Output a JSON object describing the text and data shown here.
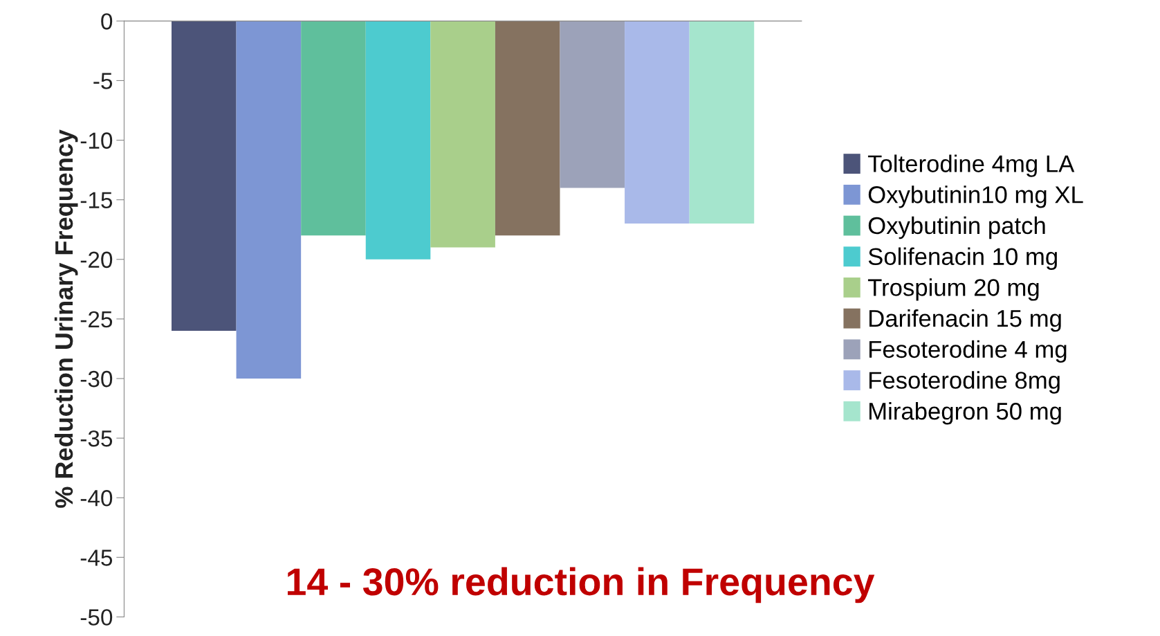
{
  "chart_data": {
    "type": "bar",
    "ylabel": "% Reduction Urinary Frequency",
    "categories": [
      null
    ],
    "series": [
      {
        "name": "Tolterodine 4mg LA",
        "color": "#4c5479",
        "values": [
          -26
        ]
      },
      {
        "name": "Oxybutinin10 mg XL",
        "color": "#7d96d4",
        "values": [
          -30
        ]
      },
      {
        "name": "Oxybutinin patch",
        "color": "#5fbf9c",
        "values": [
          -18
        ]
      },
      {
        "name": "Solifenacin 10 mg",
        "color": "#4dcbcf",
        "values": [
          -20
        ]
      },
      {
        "name": "Trospium 20 mg",
        "color": "#a9cf8b",
        "values": [
          -19
        ]
      },
      {
        "name": "Darifenacin 15 mg",
        "color": "#857260",
        "values": [
          -18
        ]
      },
      {
        "name": "Fesoterodine 4 mg",
        "color": "#9ca2b9",
        "values": [
          -14
        ]
      },
      {
        "name": "Fesoterodine 8mg",
        "color": "#a9b9e9",
        "values": [
          -17
        ]
      },
      {
        "name": "Mirabegron 50 mg",
        "color": "#a5e5cd",
        "values": [
          -17
        ]
      }
    ],
    "ylim": [
      -50,
      0
    ],
    "yticks": [
      -50,
      -45,
      -40,
      -35,
      -30,
      -25,
      -20,
      -15,
      -10,
      -5,
      0
    ],
    "grid": false,
    "legend": "right",
    "annotations": [
      "14 - 30% reduction in Frequency"
    ]
  }
}
